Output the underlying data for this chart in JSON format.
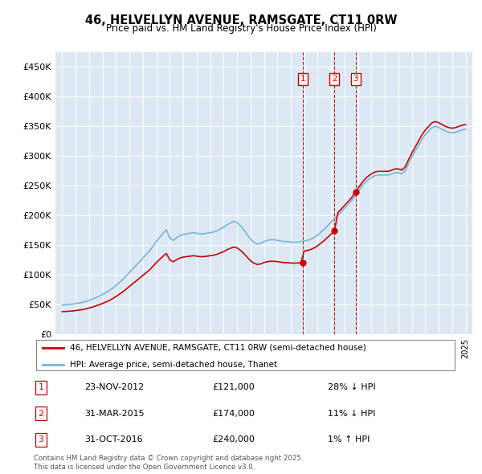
{
  "title": "46, HELVELLYN AVENUE, RAMSGATE, CT11 0RW",
  "subtitle": "Price paid vs. HM Land Registry's House Price Index (HPI)",
  "ylim": [
    0,
    475000
  ],
  "yticks": [
    0,
    50000,
    100000,
    150000,
    200000,
    250000,
    300000,
    350000,
    400000,
    450000
  ],
  "ytick_labels": [
    "£0",
    "£50K",
    "£100K",
    "£150K",
    "£200K",
    "£250K",
    "£300K",
    "£350K",
    "£400K",
    "£450K"
  ],
  "hpi_color": "#7ab4d4",
  "price_color": "#cc0000",
  "vline_color": "#cc0000",
  "bg_color": "#dce9f5",
  "grid_color": "#ffffff",
  "transactions": [
    {
      "date_num": 2012.9,
      "price": 121000,
      "label": "1"
    },
    {
      "date_num": 2015.25,
      "price": 174000,
      "label": "2"
    },
    {
      "date_num": 2016.83,
      "price": 240000,
      "label": "3"
    }
  ],
  "transaction_table": [
    {
      "num": "1",
      "date": "23-NOV-2012",
      "price": "£121,000",
      "note": "28% ↓ HPI"
    },
    {
      "num": "2",
      "date": "31-MAR-2015",
      "price": "£174,000",
      "note": "11% ↓ HPI"
    },
    {
      "num": "3",
      "date": "31-OCT-2016",
      "price": "£240,000",
      "note": "1% ↑ HPI"
    }
  ],
  "legend_line1": "46, HELVELLYN AVENUE, RAMSGATE, CT11 0RW (semi-detached house)",
  "legend_line2": "HPI: Average price, semi-detached house, Thanet",
  "footnote": "Contains HM Land Registry data © Crown copyright and database right 2025.\nThis data is licensed under the Open Government Licence v3.0.",
  "xlim_start": 1994.5,
  "xlim_end": 2025.5
}
